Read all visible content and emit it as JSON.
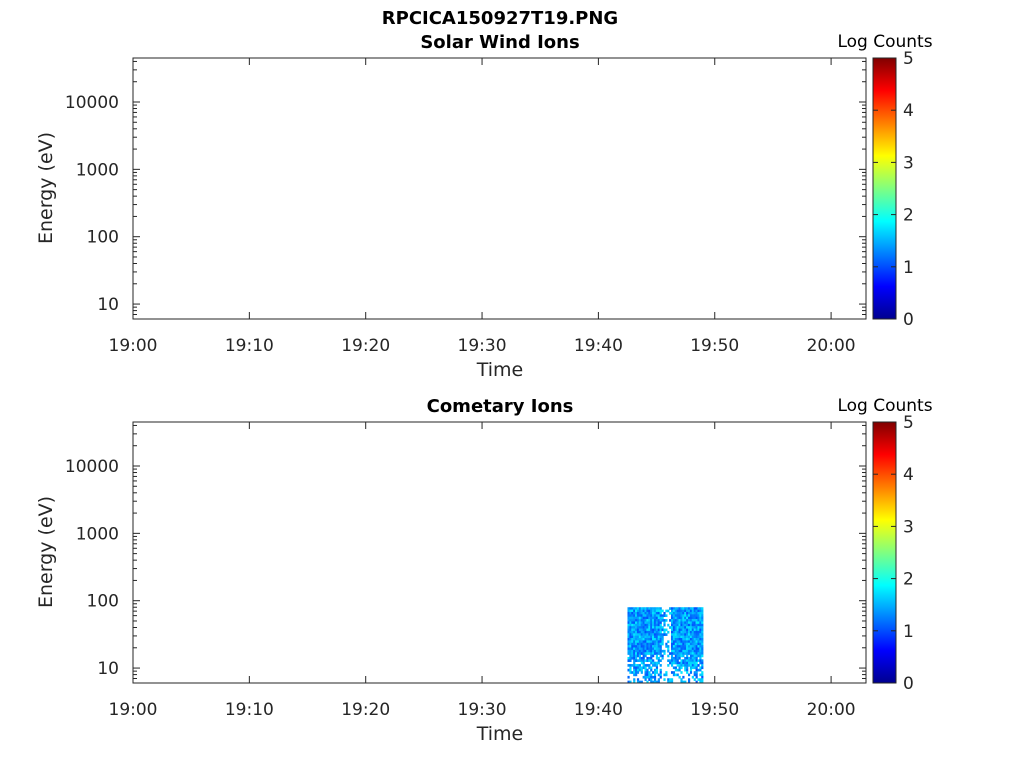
{
  "figure_title": "RPCICA150927T19.PNG",
  "chart_data": [
    {
      "type": "heatmap",
      "title": "Solar Wind Ions",
      "xlabel": "Time",
      "ylabel": "Energy (eV)",
      "x_tick_labels": [
        "19:00",
        "19:10",
        "19:20",
        "19:30",
        "19:40",
        "19:50",
        "20:00"
      ],
      "xlim": [
        "19:00",
        "20:03"
      ],
      "y_tick_labels": [
        "10",
        "100",
        "1000",
        "10000"
      ],
      "y_scale": "log",
      "ylim": [
        6,
        45000
      ],
      "colorbar": {
        "label": "Log Counts",
        "ticks": [
          "0",
          "1",
          "2",
          "3",
          "4",
          "5"
        ],
        "range": [
          0,
          5
        ],
        "colormap": "jet"
      },
      "data_regions": []
    },
    {
      "type": "heatmap",
      "title": "Cometary Ions",
      "xlabel": "Time",
      "ylabel": "Energy (eV)",
      "x_tick_labels": [
        "19:00",
        "19:10",
        "19:20",
        "19:30",
        "19:40",
        "19:50",
        "20:00"
      ],
      "xlim": [
        "19:00",
        "20:03"
      ],
      "y_tick_labels": [
        "10",
        "100",
        "1000",
        "10000"
      ],
      "y_scale": "log",
      "ylim": [
        6,
        45000
      ],
      "colorbar": {
        "label": "Log Counts",
        "ticks": [
          "0",
          "1",
          "2",
          "3",
          "4",
          "5"
        ],
        "range": [
          0,
          5
        ],
        "colormap": "jet"
      },
      "data_regions": [
        {
          "t_start": "19:42:30",
          "t_end": "19:49:00",
          "energy_min": 6,
          "energy_max": 80,
          "log_counts_range": [
            0.5,
            1.8
          ]
        }
      ]
    }
  ]
}
